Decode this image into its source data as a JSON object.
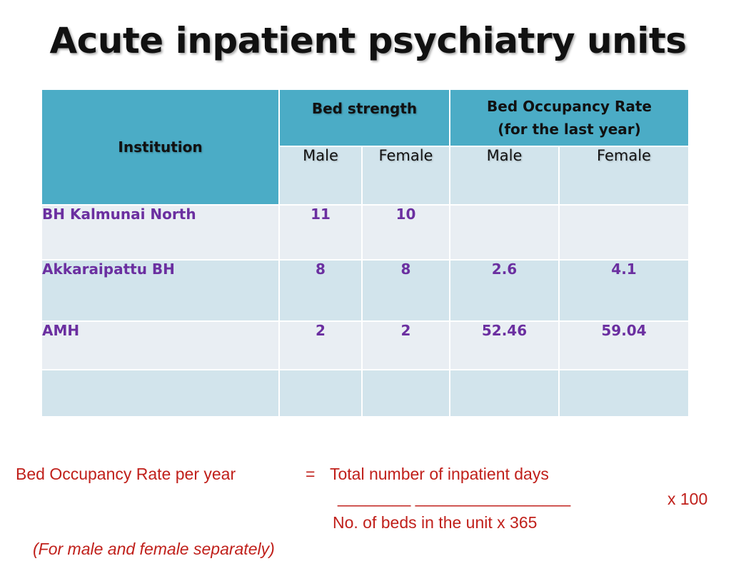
{
  "title": "Acute inpatient psychiatry units",
  "table": {
    "header": {
      "institution": "Institution",
      "bed_strength": "Bed strength",
      "occupancy_line1": "Bed Occupancy Rate",
      "occupancy_line2": "(for the last year)",
      "sub": [
        "Male",
        "Female",
        "Male",
        "Female"
      ]
    },
    "rows": [
      {
        "institution": "BH Kalmunai North",
        "bed_male": "11",
        "bed_female": "10",
        "occ_male": "",
        "occ_female": ""
      },
      {
        "institution": "Akkaraipattu BH",
        "bed_male": "8",
        "bed_female": "8",
        "occ_male": "2.6",
        "occ_female": "4.1"
      },
      {
        "institution": "AMH",
        "bed_male": "2",
        "bed_female": "2",
        "occ_male": "52.46",
        "occ_female": "59.04"
      },
      {
        "institution": "",
        "bed_male": "",
        "bed_female": "",
        "occ_male": "",
        "occ_female": ""
      }
    ]
  },
  "formula": {
    "lhs": "Bed Occupancy Rate per year",
    "equals": "=",
    "numerator": "Total number of inpatient days",
    "divider": "________ _________________",
    "denominator": "No. of beds in the unit x 365",
    "multiplier": "x 100",
    "note": "(For male and female separately)"
  },
  "colors": {
    "header_bg": "#4bacc6",
    "row_light": "#e9eef3",
    "row_dark": "#d2e4ec",
    "value_text": "#6b2fa0",
    "formula_text": "#c0201b"
  }
}
